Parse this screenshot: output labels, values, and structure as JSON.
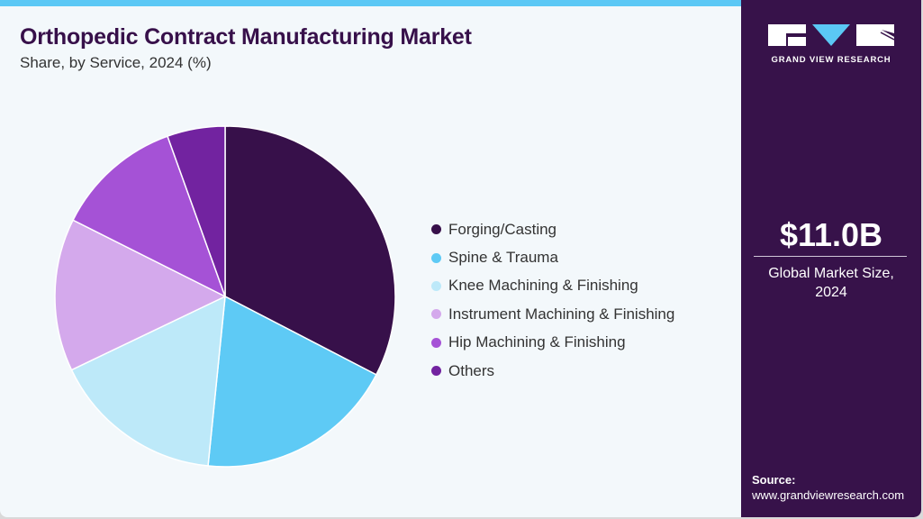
{
  "header": {
    "title": "Orthopedic Contract Manufacturing Market",
    "subtitle": "Share, by Service, 2024 (%)"
  },
  "colors": {
    "accent_bar": "#5bc8f5",
    "side_panel": "#37124a",
    "title": "#37104a",
    "background": "#f3f8fb"
  },
  "chart_data": {
    "type": "pie",
    "title": "Orthopedic Contract Manufacturing Market",
    "subtitle": "Share, by Service, 2024 (%)",
    "categories": [
      "Forging/Casting",
      "Spine & Trauma",
      "Knee Machining & Finishing",
      "Instrument Machining & Finishing",
      "Hip Machining & Finishing",
      "Others"
    ],
    "values": [
      32.6,
      19.0,
      16.3,
      14.5,
      12.1,
      5.5
    ],
    "colors": [
      "#37104a",
      "#5ecaf5",
      "#bde9f9",
      "#d4a9ec",
      "#a552d6",
      "#7223a0"
    ],
    "start_angle": "12 o'clock, clockwise",
    "legend_position": "right"
  },
  "legend": {
    "items": [
      {
        "label": "Forging/Casting",
        "color": "#37104a"
      },
      {
        "label": "Spine & Trauma",
        "color": "#5ecaf5"
      },
      {
        "label": "Knee Machining & Finishing",
        "color": "#bde9f9"
      },
      {
        "label": "Instrument Machining & Finishing",
        "color": "#d4a9ec"
      },
      {
        "label": "Hip Machining & Finishing",
        "color": "#a552d6"
      },
      {
        "label": "Others",
        "color": "#7223a0"
      }
    ]
  },
  "side_panel": {
    "logo_text": "GRAND VIEW RESEARCH",
    "market_value": "$11.0B",
    "market_label_line1": "Global Market Size,",
    "market_label_line2": "2024",
    "source_label": "Source:",
    "source_url": "www.grandviewresearch.com"
  }
}
